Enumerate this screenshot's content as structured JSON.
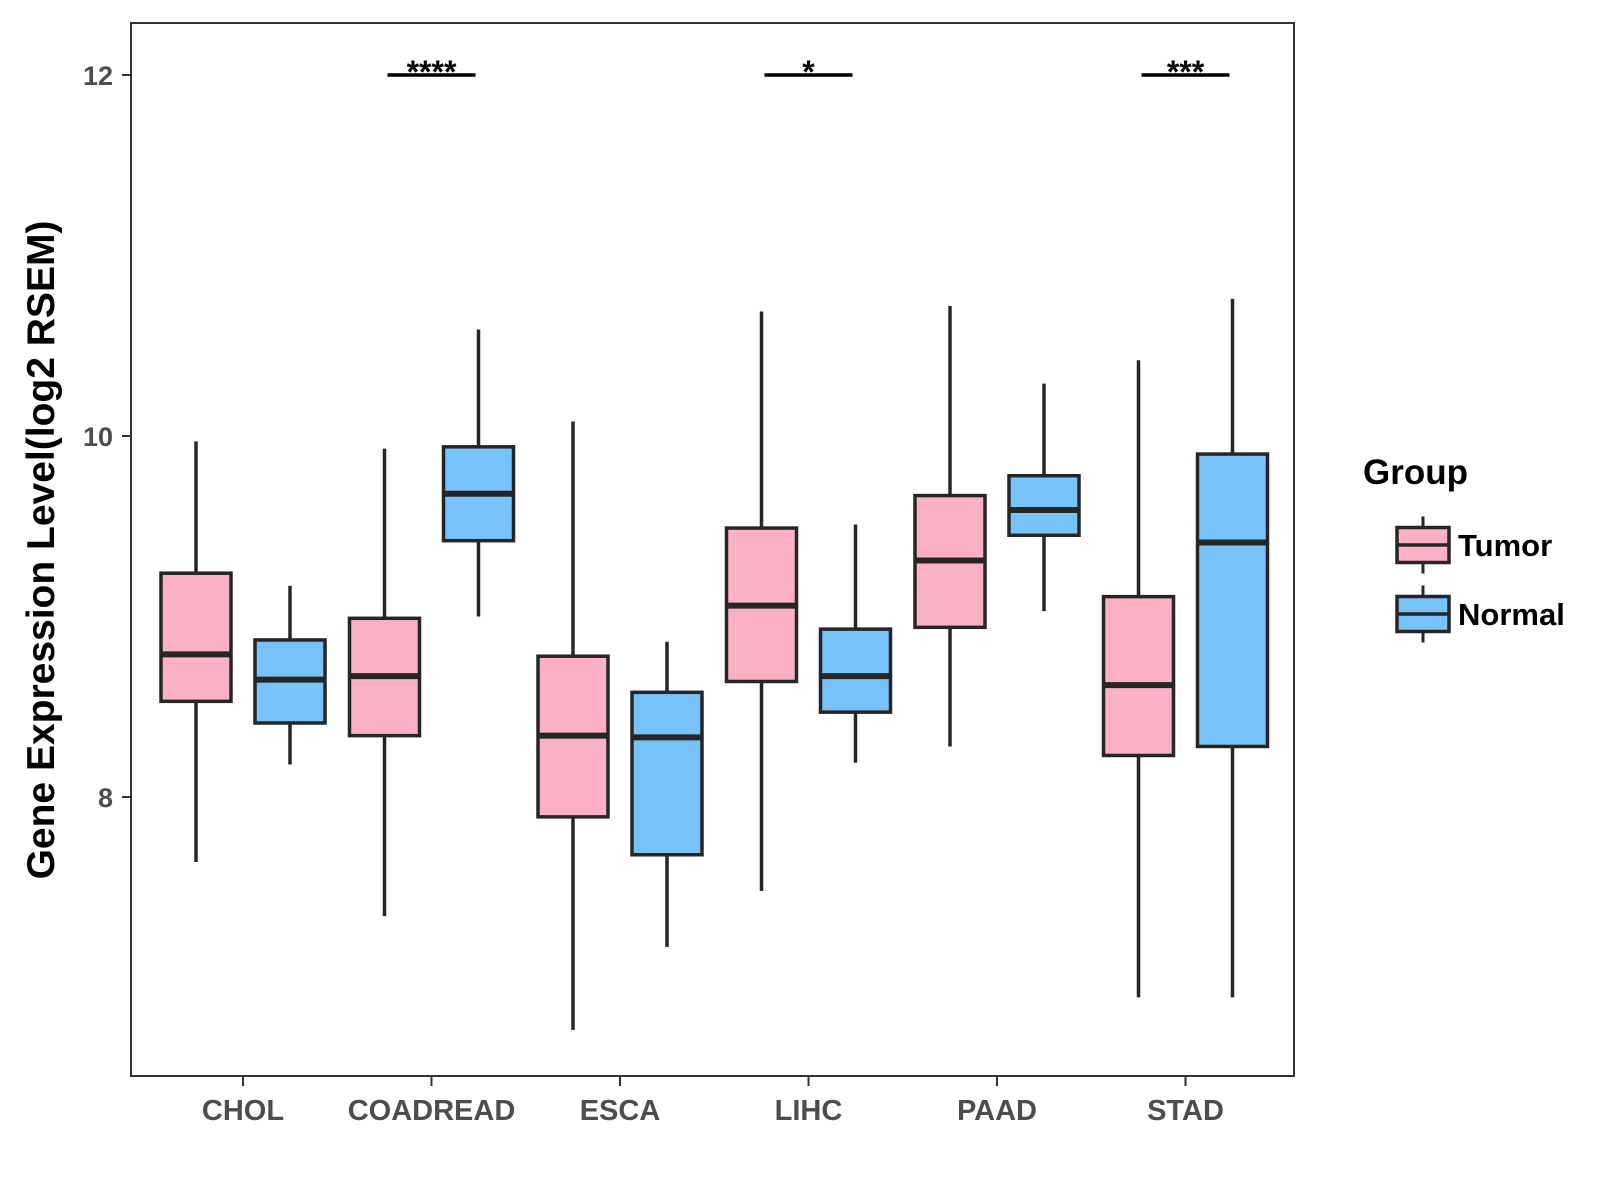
{
  "chart_data": {
    "type": "boxplot",
    "title": "",
    "xlabel": "",
    "ylabel": "Gene Expression Level(log2 RSEM)",
    "ylim": [
      6.5,
      12.3
    ],
    "yticks": [
      8,
      10,
      12
    ],
    "categories": [
      "CHOL",
      "COADREAD",
      "ESCA",
      "LIHC",
      "PAAD",
      "STAD"
    ],
    "legend": {
      "title": "Group",
      "placement": "right",
      "entries": [
        {
          "name": "Tumor",
          "color": "#FBB0C4"
        },
        {
          "name": "Normal",
          "color": "#78C2FA"
        }
      ]
    },
    "series": [
      {
        "name": "Tumor",
        "color": "#FBB0C4",
        "boxes": [
          {
            "min": 7.64,
            "q1": 8.53,
            "median": 8.79,
            "q3": 9.24,
            "max": 9.97
          },
          {
            "min": 7.34,
            "q1": 8.34,
            "median": 8.67,
            "q3": 8.99,
            "max": 9.93
          },
          {
            "min": 6.71,
            "q1": 7.89,
            "median": 8.34,
            "q3": 8.78,
            "max": 10.08
          },
          {
            "min": 7.48,
            "q1": 8.64,
            "median": 9.06,
            "q3": 9.49,
            "max": 10.69
          },
          {
            "min": 8.28,
            "q1": 8.94,
            "median": 9.31,
            "q3": 9.67,
            "max": 10.72
          },
          {
            "min": 6.89,
            "q1": 8.23,
            "median": 8.62,
            "q3": 9.11,
            "max": 10.42
          }
        ]
      },
      {
        "name": "Normal",
        "color": "#78C2FA",
        "boxes": [
          {
            "min": 8.18,
            "q1": 8.41,
            "median": 8.65,
            "q3": 8.87,
            "max": 9.17
          },
          {
            "min": 9.0,
            "q1": 9.42,
            "median": 9.68,
            "q3": 9.94,
            "max": 10.59
          },
          {
            "min": 7.17,
            "q1": 7.68,
            "median": 8.33,
            "q3": 8.58,
            "max": 8.86
          },
          {
            "min": 8.19,
            "q1": 8.47,
            "median": 8.67,
            "q3": 8.93,
            "max": 9.51
          },
          {
            "min": 9.03,
            "q1": 9.45,
            "median": 9.59,
            "q3": 9.78,
            "max": 10.29
          },
          {
            "min": 6.89,
            "q1": 8.28,
            "median": 9.41,
            "q3": 9.9,
            "max": 10.76
          }
        ]
      }
    ],
    "significance": [
      {
        "category": "COADREAD",
        "label": "****",
        "y": 12
      },
      {
        "category": "LIHC",
        "label": "*",
        "y": 12
      },
      {
        "category": "STAD",
        "label": "***",
        "y": 12
      }
    ]
  }
}
